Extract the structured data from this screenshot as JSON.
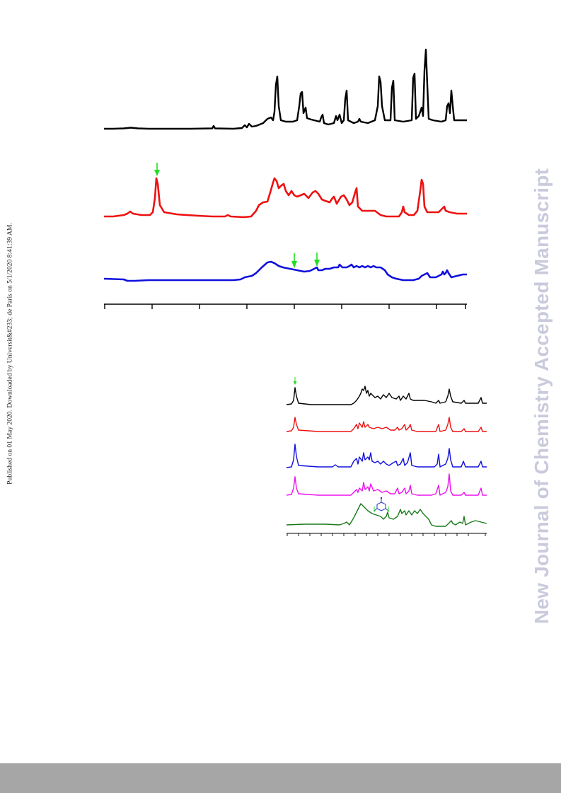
{
  "side_note": "Published on 01 May 2020. Downloaded by Universit&#233; de Paris on 5/1/2020 8:41:39 AM.",
  "watermark": "New Journal of Chemistry Accepted Manuscript",
  "colors": {
    "black_trace": "#000000",
    "red_trace": "#ee1111",
    "blue_trace": "#1010dd",
    "magenta_trace": "#ee11ee",
    "green_trace": "#1a7a1a",
    "marker_arrow": "#22dd22",
    "molecule": "#2233cc",
    "footer": "#a6a6a6",
    "watermark": "#c9cbdc"
  },
  "figure_a": {
    "axis": {
      "major_tick_count": 9
    },
    "markers": [
      "green-arrow",
      "green-arrow",
      "green-arrow"
    ]
  },
  "figure_b": {
    "axis": {
      "major_tick_count": 18
    },
    "markers": [
      "green-arrow"
    ],
    "inset": "molecule-structure"
  }
}
